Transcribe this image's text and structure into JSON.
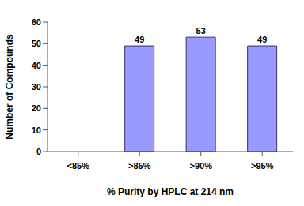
{
  "chart_data": {
    "type": "bar",
    "categories": [
      "<85%",
      ">85%",
      ">90%",
      ">95%"
    ],
    "values": [
      0,
      49,
      53,
      49
    ],
    "color": "#9999ff",
    "xlabel": "% Purity by HPLC at 214 nm",
    "ylabel": "Number of Compounds",
    "ylim": [
      0,
      60
    ],
    "yticks": [
      0,
      10,
      20,
      30,
      40,
      50,
      60
    ],
    "grid": false,
    "data_labels": true
  }
}
